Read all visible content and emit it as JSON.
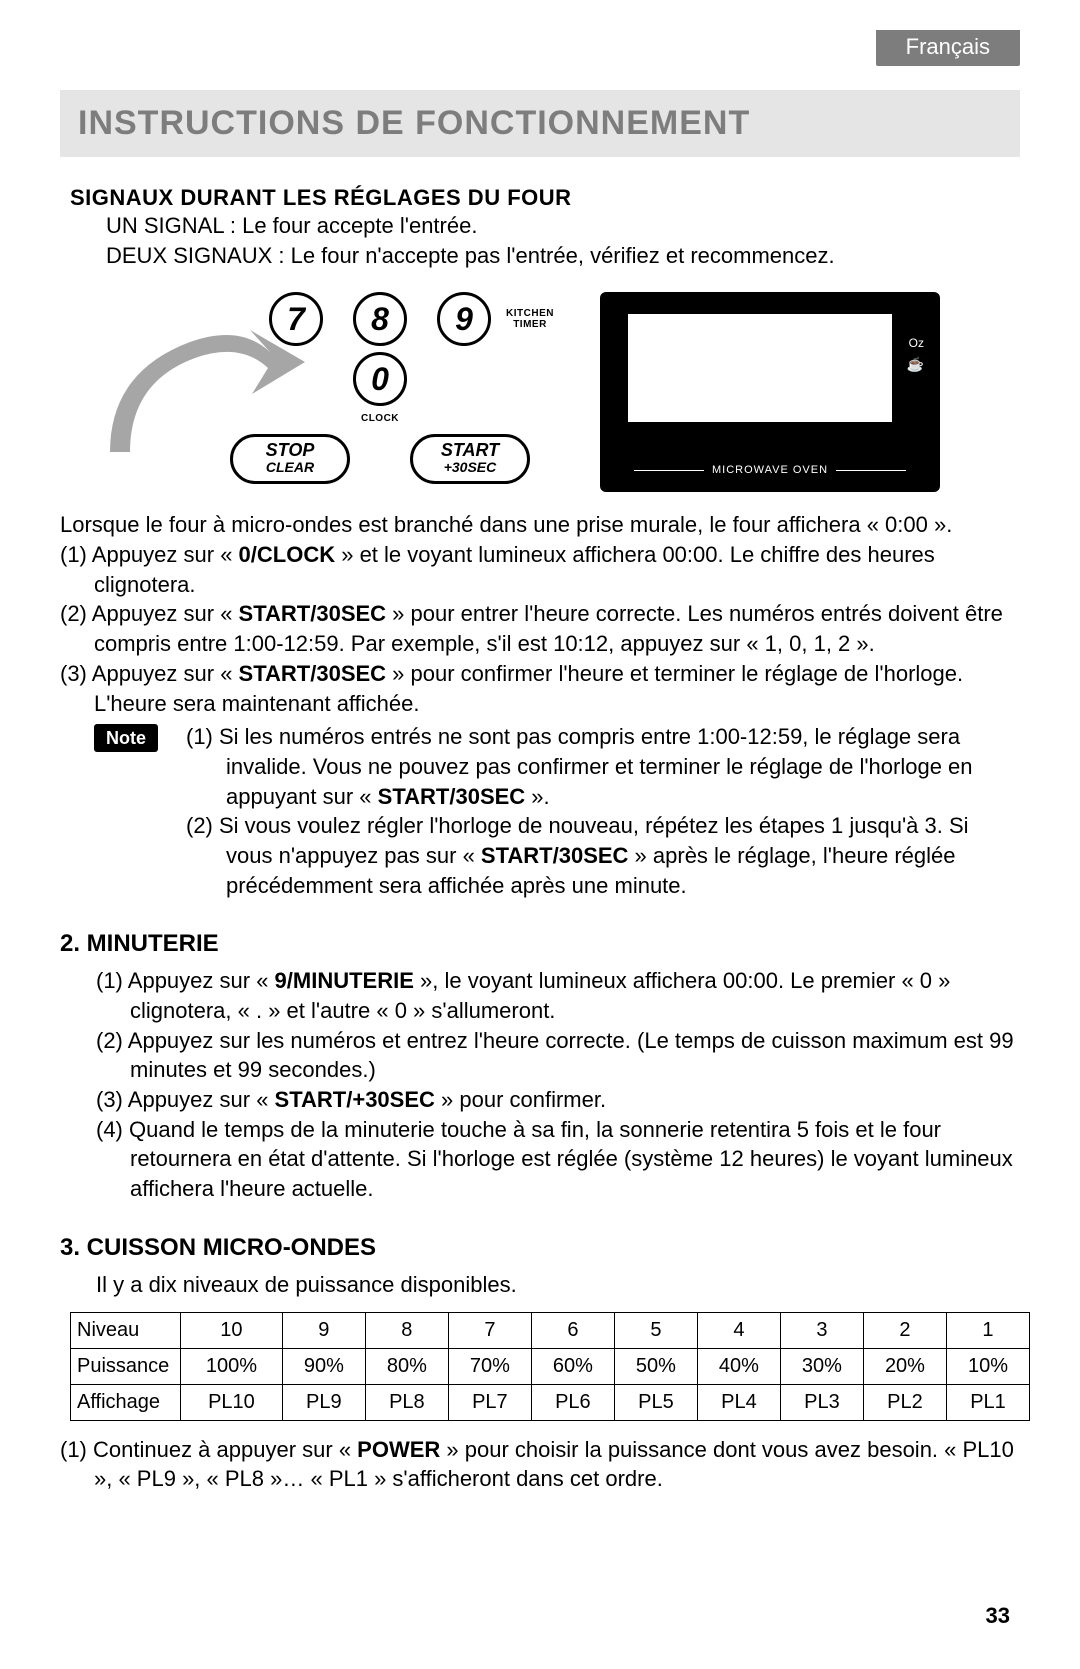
{
  "language_tab": "Français",
  "page_title": "INSTRUCTIONS DE FONCTIONNEMENT",
  "page_number": "33",
  "signals": {
    "heading": "SIGNAUX DURANT LES RÉGLAGES DU FOUR",
    "line1": "UN SIGNAL : Le four accepte l'entrée.",
    "line2": "DEUX SIGNAUX : Le four n'accepte pas l'entrée, vérifiez et recommencez."
  },
  "keypad": {
    "keys": {
      "k7": "7",
      "k8": "8",
      "k9": "9",
      "k0": "0"
    },
    "key9_label": "KITCHEN TIMER",
    "key0_label": "CLOCK",
    "stop": {
      "l1": "STOP",
      "l2": "CLEAR"
    },
    "start": {
      "l1": "START",
      "l2": "+30SEC"
    },
    "arrow_color": "#a6a6a6"
  },
  "oven": {
    "oz": "Oz",
    "cup": "☕",
    "label": "MICROWAVE OVEN",
    "bg": "#000000",
    "screen_bg": "#ffffff"
  },
  "clock_steps": {
    "intro": "Lorsque le four à micro-ondes est branché dans une prise murale, le four affichera « 0:00 ».",
    "s1a": "(1) Appuyez sur « ",
    "s1b": "0/CLOCK",
    "s1c": " » et le voyant lumineux affichera 00:00. Le chiffre des heures clignotera.",
    "s2a": "(2) Appuyez sur « ",
    "s2b": "START/30SEC",
    "s2c": " » pour entrer l'heure correcte. Les numéros entrés doivent être compris entre 1:00-12:59. Par exemple, s'il est 10:12, appuyez sur « 1, 0, 1, 2 ».",
    "s3a": "(3) Appuyez sur « ",
    "s3b": "START/30SEC",
    "s3c": " » pour confirmer l'heure et terminer le réglage de l'horloge. L'heure sera maintenant affichée."
  },
  "note": {
    "label": "Note",
    "n1a": "(1) Si les numéros entrés ne sont pas compris entre 1:00-12:59, le réglage sera invalide. Vous ne pouvez pas confirmer et  terminer le réglage de l'horloge en appuyant sur « ",
    "n1b": "START/30SEC",
    "n1c": " ».",
    "n2a": "(2) Si vous voulez régler l'horloge de nouveau, répétez les étapes 1 jusqu'à 3. Si vous n'appuyez pas sur « ",
    "n2b": "START/30SEC",
    "n2c": " » après le réglage, l'heure réglée précédemment sera affichée après une minute."
  },
  "minuterie": {
    "heading": "2. MINUTERIE",
    "s1a": "(1) Appuyez sur « ",
    "s1b": "9/MINUTERIE",
    "s1c": " », le voyant lumineux affichera 00:00. Le premier « 0 » clignotera, « . » et l'autre « 0 » s'allumeront.",
    "s2": "(2) Appuyez sur les numéros et entrez l'heure correcte. (Le temps de cuisson maximum est 99 minutes et 99 secondes.)",
    "s3a": "(3) Appuyez sur « ",
    "s3b": "START/+30SEC",
    "s3c": " » pour confirmer.",
    "s4": "(4) Quand le temps de la minuterie touche à sa fin, la sonnerie retentira 5 fois et le four retournera en état d'attente. Si l'horloge est réglée (système 12 heures) le voyant lumineux affichera l'heure actuelle."
  },
  "cuisson": {
    "heading": "3. CUISSON MICRO-ONDES",
    "intro": "Il y a dix niveaux de puissance disponibles.",
    "table": {
      "row_labels": [
        "Niveau",
        "Puissance",
        "Affichage"
      ],
      "niveau": [
        "10",
        "9",
        "8",
        "7",
        "6",
        "5",
        "4",
        "3",
        "2",
        "1"
      ],
      "puissance": [
        "100%",
        "90%",
        "80%",
        "70%",
        "60%",
        "50%",
        "40%",
        "30%",
        "20%",
        "10%"
      ],
      "affichage": [
        "PL10",
        "PL9",
        "PL8",
        "PL7",
        "PL6",
        "PL5",
        "PL4",
        "PL3",
        "PL2",
        "PL1"
      ]
    },
    "s1a": "(1) Continuez à appuyer sur « ",
    "s1b": "POWER",
    "s1c": " » pour choisir la puissance dont vous avez besoin. « PL10 », « PL9 », « PL8 »… « PL1 » s'afficheront dans cet ordre."
  },
  "colors": {
    "title_bg": "#e5e5e5",
    "title_fg": "#7d7d7d",
    "lang_bg": "#7d7d7d",
    "text": "#000000"
  }
}
